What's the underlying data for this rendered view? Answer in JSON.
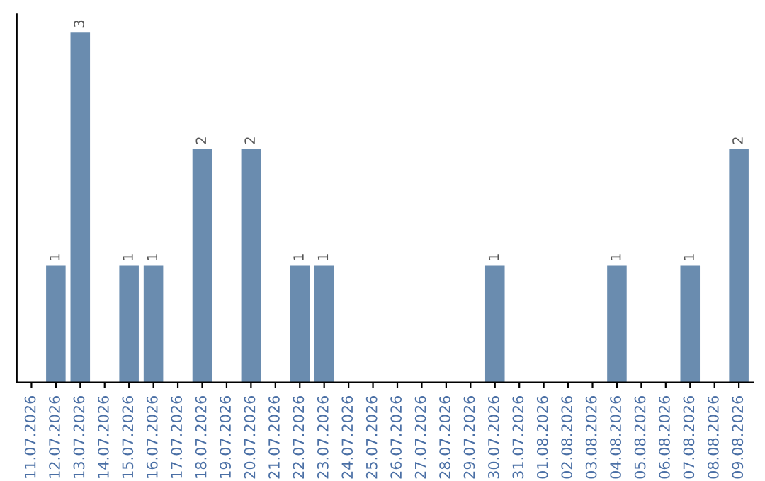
{
  "chart_data": {
    "type": "bar",
    "categories": [
      "11.07.2026",
      "12.07.2026",
      "13.07.2026",
      "14.07.2026",
      "15.07.2026",
      "16.07.2026",
      "17.07.2026",
      "18.07.2026",
      "19.07.2026",
      "20.07.2026",
      "21.07.2026",
      "22.07.2026",
      "23.07.2026",
      "24.07.2026",
      "25.07.2026",
      "26.07.2026",
      "27.07.2026",
      "28.07.2026",
      "29.07.2026",
      "30.07.2026",
      "31.07.2026",
      "01.08.2026",
      "02.08.2026",
      "03.08.2026",
      "04.08.2026",
      "05.08.2026",
      "06.08.2026",
      "07.08.2026",
      "08.08.2026",
      "09.08.2026"
    ],
    "values": [
      0,
      1,
      3,
      0,
      1,
      1,
      0,
      2,
      0,
      2,
      0,
      1,
      1,
      0,
      0,
      0,
      0,
      0,
      0,
      1,
      0,
      0,
      0,
      0,
      1,
      0,
      0,
      1,
      0,
      2
    ],
    "value_labels": [
      null,
      "1",
      "3",
      null,
      "1",
      "1",
      null,
      "2",
      null,
      "2",
      null,
      "1",
      "1",
      null,
      null,
      null,
      null,
      null,
      null,
      "1",
      null,
      null,
      null,
      null,
      "1",
      null,
      null,
      "1",
      null,
      "2"
    ],
    "color": "#6a8caf",
    "grid": false,
    "legend": false
  }
}
